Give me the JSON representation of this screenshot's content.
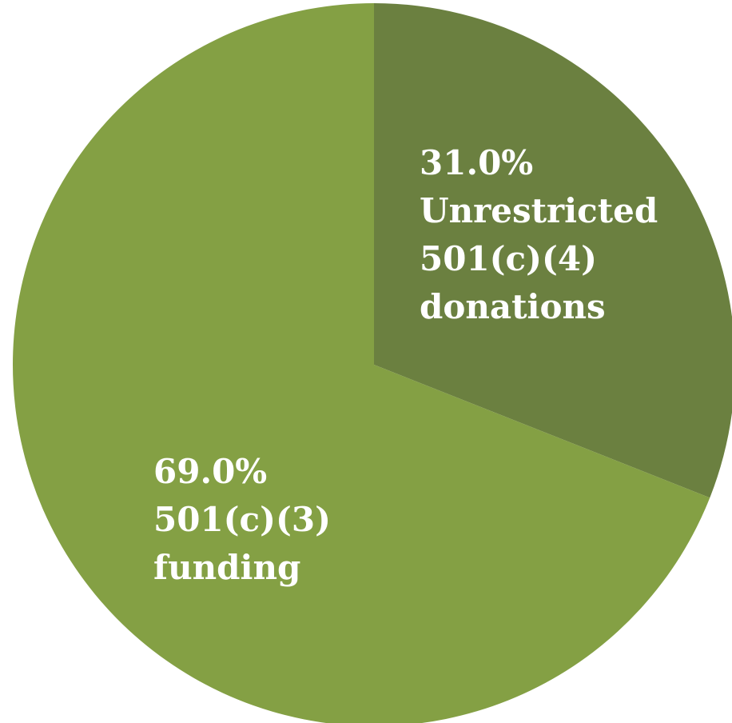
{
  "chart_data": {
    "type": "pie",
    "start_angle_deg": 0,
    "direction": "clockwise",
    "grid": false,
    "legend": "none",
    "slices": [
      {
        "id": "c4",
        "value": 31.0,
        "percent_label": "31.0%",
        "label_lines": [
          "Unrestricted",
          "501(c)(4)",
          "donations"
        ],
        "color": "#6b8040"
      },
      {
        "id": "c3",
        "value": 69.0,
        "percent_label": "69.0%",
        "label_lines": [
          "501(c)(3)",
          "funding"
        ],
        "color": "#84a044"
      }
    ]
  }
}
